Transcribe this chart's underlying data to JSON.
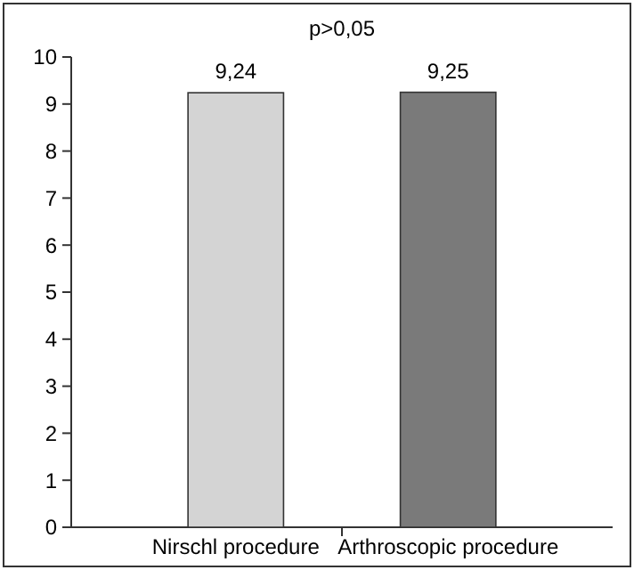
{
  "chart_data": {
    "type": "bar",
    "categories": [
      "Nirschl procedure",
      "Arthroscopic procedure"
    ],
    "values": [
      9.24,
      9.25
    ],
    "colors": [
      "#d4d4d4",
      "#7a7a7a"
    ],
    "value_labels": [
      "9,24",
      "9,25"
    ],
    "annotations": [
      "p>0,05"
    ],
    "ylim": [
      0,
      10
    ],
    "yticks": [
      0,
      1,
      2,
      3,
      4,
      5,
      6,
      7,
      8,
      9,
      10
    ],
    "grid": false
  }
}
